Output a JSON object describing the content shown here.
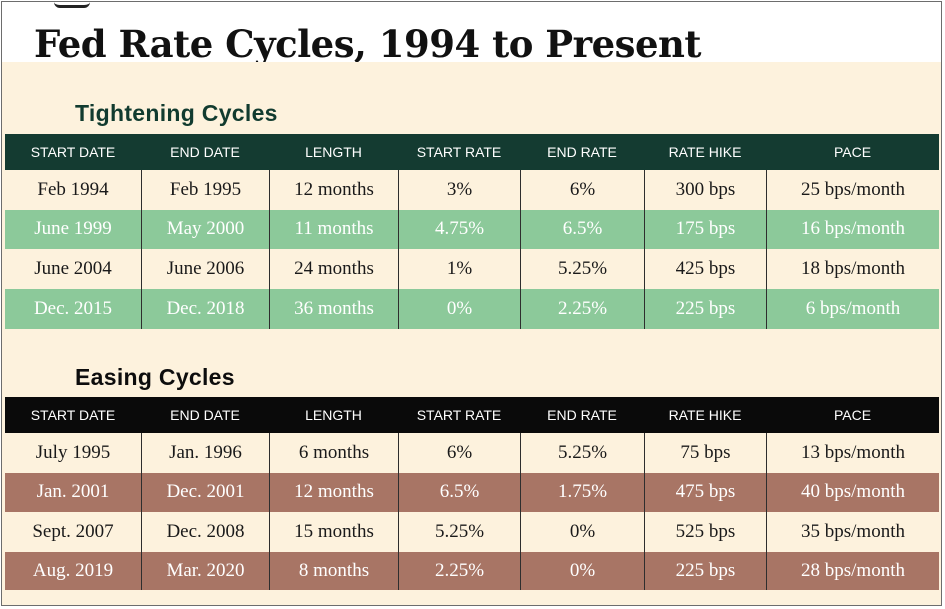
{
  "title": "Fed Rate Cycles, 1994 to Present",
  "tightening": {
    "heading": "Tightening Cycles",
    "columns": [
      "START DATE",
      "END DATE",
      "LENGTH",
      "START RATE",
      "END RATE",
      "RATE HIKE",
      "PACE"
    ],
    "rows": [
      [
        "Feb 1994",
        "Feb 1995",
        "12 months",
        "3%",
        "6%",
        "300 bps",
        "25 bps/month"
      ],
      [
        "June 1999",
        "May 2000",
        "11 months",
        "4.75%",
        "6.5%",
        "175 bps",
        "16 bps/month"
      ],
      [
        "June 2004",
        "June 2006",
        "24 months",
        "1%",
        "5.25%",
        "425 bps",
        "18 bps/month"
      ],
      [
        "Dec. 2015",
        "Dec. 2018",
        "36 months",
        "0%",
        "2.25%",
        "225 bps",
        "6 bps/month"
      ]
    ]
  },
  "easing": {
    "heading": "Easing Cycles",
    "columns": [
      "START DATE",
      "END DATE",
      "LENGTH",
      "START RATE",
      "END RATE",
      "RATE HIKE",
      "PACE"
    ],
    "rows": [
      [
        "July 1995",
        "Jan. 1996",
        "6 months",
        "6%",
        "5.25%",
        "75 bps",
        "13 bps/month"
      ],
      [
        "Jan. 2001",
        "Dec. 2001",
        "12 months",
        "6.5%",
        "1.75%",
        "475 bps",
        "40 bps/month"
      ],
      [
        "Sept. 2007",
        "Dec. 2008",
        "15 months",
        "5.25%",
        "0%",
        "525 bps",
        "35 bps/month"
      ],
      [
        "Aug. 2019",
        "Mar. 2020",
        "8 months",
        "2.25%",
        "0%",
        "225 bps",
        "28 bps/month"
      ]
    ]
  },
  "colors": {
    "tightening_header": "#143b31",
    "tightening_alt_row": "#8cc99a",
    "easing_header": "#0a0a0a",
    "easing_alt_row": "#a87565",
    "panel_background": "#fdf2dd"
  }
}
